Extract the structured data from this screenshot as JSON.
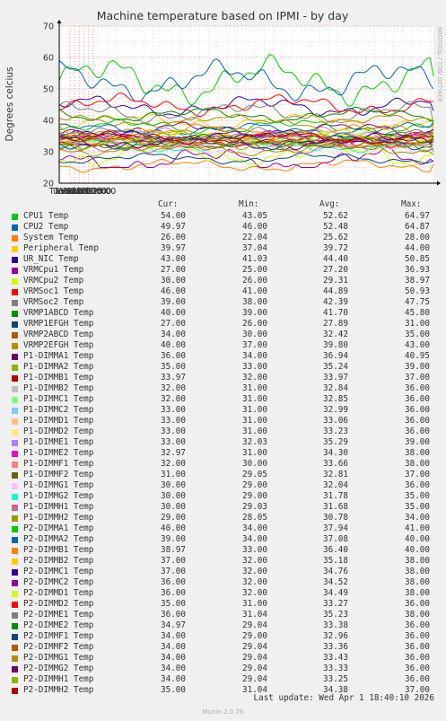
{
  "chart_data": {
    "type": "line",
    "title": "Machine temperature based on IPMI - by day",
    "ylabel": "Degrees celcius",
    "ylim": [
      20,
      70
    ],
    "yticks": [
      "20",
      "30",
      "40",
      "50",
      "60",
      "70"
    ],
    "xticks": [
      "Tue 12:00",
      "Tue 18:00",
      "Wed 00:00",
      "Wed 06:00",
      "Wed 12:00",
      "Wed 18:00"
    ],
    "side_label": "RRDTOOL / TOBI OETIKER",
    "grid": true,
    "legend_position": "bottom",
    "columns": [
      "Cur:",
      "Min:",
      "Avg:",
      "Max:"
    ],
    "series": [
      {
        "name": "CPU1 Temp",
        "color": "#00cc00",
        "cur": "54.00",
        "min": "43.05",
        "avg": "52.62",
        "max": "64.97"
      },
      {
        "name": "CPU2 Temp",
        "color": "#0066b3",
        "cur": "49.97",
        "min": "46.00",
        "avg": "52.48",
        "max": "64.87"
      },
      {
        "name": "System Temp",
        "color": "#ff8000",
        "cur": "26.00",
        "min": "22.04",
        "avg": "25.62",
        "max": "28.00"
      },
      {
        "name": "Peripheral Temp",
        "color": "#ffcc00",
        "cur": "39.97",
        "min": "37.04",
        "avg": "39.72",
        "max": "44.00"
      },
      {
        "name": "UR_NIC Temp",
        "color": "#330099",
        "cur": "43.00",
        "min": "41.03",
        "avg": "44.40",
        "max": "50.85"
      },
      {
        "name": "VRMCpu1 Temp",
        "color": "#990099",
        "cur": "27.00",
        "min": "25.00",
        "avg": "27.20",
        "max": "36.93"
      },
      {
        "name": "VRMCpu2 Temp",
        "color": "#ccff00",
        "cur": "30.00",
        "min": "26.00",
        "avg": "29.31",
        "max": "38.97"
      },
      {
        "name": "VRMSoc1 Temp",
        "color": "#ff0000",
        "cur": "46.00",
        "min": "41.00",
        "avg": "44.89",
        "max": "50.93"
      },
      {
        "name": "VRMSoc2 Temp",
        "color": "#808080",
        "cur": "39.00",
        "min": "38.00",
        "avg": "42.39",
        "max": "47.75"
      },
      {
        "name": "VRMP1ABCD Temp",
        "color": "#008f00",
        "cur": "40.00",
        "min": "39.00",
        "avg": "41.70",
        "max": "45.80"
      },
      {
        "name": "VRMP1EFGH Temp",
        "color": "#00487d",
        "cur": "27.00",
        "min": "26.00",
        "avg": "27.89",
        "max": "31.00"
      },
      {
        "name": "VRMP2ABCD Temp",
        "color": "#b35a00",
        "cur": "34.00",
        "min": "30.00",
        "avg": "32.42",
        "max": "35.00"
      },
      {
        "name": "VRMP2EFGH Temp",
        "color": "#b38f00",
        "cur": "40.00",
        "min": "37.00",
        "avg": "39.80",
        "max": "43.00"
      },
      {
        "name": "P1-DIMMA1 Temp",
        "color": "#6b006b",
        "cur": "36.00",
        "min": "34.00",
        "avg": "36.94",
        "max": "40.95"
      },
      {
        "name": "P1-DIMMA2 Temp",
        "color": "#8fb300",
        "cur": "35.00",
        "min": "33.00",
        "avg": "35.24",
        "max": "39.00"
      },
      {
        "name": "P1-DIMMB1 Temp",
        "color": "#b30000",
        "cur": "33.97",
        "min": "32.00",
        "avg": "33.97",
        "max": "37.00"
      },
      {
        "name": "P1-DIMMB2 Temp",
        "color": "#bebebe",
        "cur": "32.00",
        "min": "31.00",
        "avg": "32.84",
        "max": "36.00"
      },
      {
        "name": "P1-DIMMC1 Temp",
        "color": "#80ff80",
        "cur": "32.00",
        "min": "31.00",
        "avg": "32.85",
        "max": "36.00"
      },
      {
        "name": "P1-DIMMC2 Temp",
        "color": "#80c9ff",
        "cur": "33.00",
        "min": "31.00",
        "avg": "32.99",
        "max": "36.00"
      },
      {
        "name": "P1-DIMMD1 Temp",
        "color": "#ffc080",
        "cur": "33.00",
        "min": "31.00",
        "avg": "33.06",
        "max": "36.00"
      },
      {
        "name": "P1-DIMMD2 Temp",
        "color": "#ffe680",
        "cur": "33.00",
        "min": "31.00",
        "avg": "33.23",
        "max": "36.00"
      },
      {
        "name": "P1-DIMME1 Temp",
        "color": "#aa80ff",
        "cur": "33.00",
        "min": "32.03",
        "avg": "35.29",
        "max": "39.00"
      },
      {
        "name": "P1-DIMME2 Temp",
        "color": "#ee00cc",
        "cur": "32.97",
        "min": "31.00",
        "avg": "34.30",
        "max": "38.00"
      },
      {
        "name": "P1-DIMMF1 Temp",
        "color": "#ff8080",
        "cur": "32.00",
        "min": "30.00",
        "avg": "33.66",
        "max": "38.00"
      },
      {
        "name": "P1-DIMMF2 Temp",
        "color": "#666600",
        "cur": "31.00",
        "min": "29.05",
        "avg": "32.81",
        "max": "37.00"
      },
      {
        "name": "P1-DIMMG1 Temp",
        "color": "#ffbfff",
        "cur": "30.00",
        "min": "29.00",
        "avg": "32.04",
        "max": "36.00"
      },
      {
        "name": "P1-DIMMG2 Temp",
        "color": "#00ffcc",
        "cur": "30.00",
        "min": "29.00",
        "avg": "31.78",
        "max": "35.00"
      },
      {
        "name": "P1-DIMMH1 Temp",
        "color": "#cc6699",
        "cur": "30.00",
        "min": "29.03",
        "avg": "31.68",
        "max": "35.00"
      },
      {
        "name": "P1-DIMMH2 Temp",
        "color": "#999900",
        "cur": "29.00",
        "min": "28.05",
        "avg": "30.78",
        "max": "34.00"
      },
      {
        "name": "P2-DIMMA1 Temp",
        "color": "#00cc00",
        "cur": "40.00",
        "min": "34.00",
        "avg": "37.94",
        "max": "41.00"
      },
      {
        "name": "P2-DIMMA2 Temp",
        "color": "#0066b3",
        "cur": "39.00",
        "min": "34.00",
        "avg": "37.08",
        "max": "40.00"
      },
      {
        "name": "P2-DIMMB1 Temp",
        "color": "#ff8000",
        "cur": "38.97",
        "min": "33.00",
        "avg": "36.40",
        "max": "40.00"
      },
      {
        "name": "P2-DIMMB2 Temp",
        "color": "#ffcc00",
        "cur": "37.00",
        "min": "32.00",
        "avg": "35.18",
        "max": "38.00"
      },
      {
        "name": "P2-DIMMC1 Temp",
        "color": "#330099",
        "cur": "37.00",
        "min": "32.00",
        "avg": "34.76",
        "max": "38.00"
      },
      {
        "name": "P2-DIMMC2 Temp",
        "color": "#990099",
        "cur": "36.00",
        "min": "32.00",
        "avg": "34.52",
        "max": "38.00"
      },
      {
        "name": "P2-DIMMD1 Temp",
        "color": "#ccff00",
        "cur": "36.00",
        "min": "32.00",
        "avg": "34.49",
        "max": "38.00"
      },
      {
        "name": "P2-DIMMD2 Temp",
        "color": "#ff0000",
        "cur": "35.00",
        "min": "31.00",
        "avg": "33.27",
        "max": "36.00"
      },
      {
        "name": "P2-DIMME1 Temp",
        "color": "#808080",
        "cur": "36.00",
        "min": "31.04",
        "avg": "35.23",
        "max": "38.00"
      },
      {
        "name": "P2-DIMME2 Temp",
        "color": "#008f00",
        "cur": "34.97",
        "min": "29.04",
        "avg": "33.38",
        "max": "36.00"
      },
      {
        "name": "P2-DIMMF1 Temp",
        "color": "#00487d",
        "cur": "34.00",
        "min": "29.00",
        "avg": "32.96",
        "max": "36.00"
      },
      {
        "name": "P2-DIMMF2 Temp",
        "color": "#b35a00",
        "cur": "34.00",
        "min": "29.04",
        "avg": "33.36",
        "max": "36.00"
      },
      {
        "name": "P2-DIMMG1 Temp",
        "color": "#b38f00",
        "cur": "34.00",
        "min": "29.04",
        "avg": "33.43",
        "max": "36.00"
      },
      {
        "name": "P2-DIMMG2 Temp",
        "color": "#6b006b",
        "cur": "34.00",
        "min": "29.04",
        "avg": "33.33",
        "max": "36.00"
      },
      {
        "name": "P2-DIMMH1 Temp",
        "color": "#8fb300",
        "cur": "34.00",
        "min": "29.04",
        "avg": "33.25",
        "max": "36.00"
      },
      {
        "name": "P2-DIMMH2 Temp",
        "color": "#b30000",
        "cur": "35.00",
        "min": "31.04",
        "avg": "34.38",
        "max": "37.00"
      }
    ]
  },
  "footer": {
    "last_update": "Last update: Wed Apr  1 18:40:10 2026",
    "version": "Munin 2.0.76"
  }
}
